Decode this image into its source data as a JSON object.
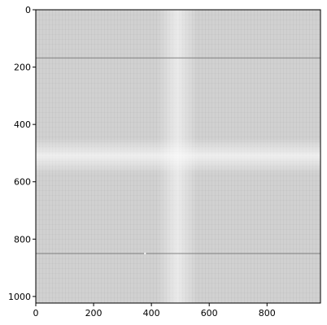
{
  "chart_data": {
    "type": "heatmap",
    "title": "",
    "xlabel": "",
    "ylabel": "",
    "xlim": [
      0,
      985
    ],
    "ylim": [
      1023,
      0
    ],
    "x_ticks": [
      0,
      200,
      400,
      600,
      800
    ],
    "y_ticks": [
      0,
      200,
      400,
      600,
      800,
      1000
    ],
    "x_tick_labels": [
      "0",
      "200",
      "400",
      "600",
      "800"
    ],
    "y_tick_labels": [
      "0",
      "200",
      "400",
      "600",
      "800",
      "1000"
    ],
    "grid": false,
    "colormap": "gray",
    "background_value": 0.82,
    "bright_column_center": 490,
    "bright_row_center": 510,
    "bright_peak_value": 0.94,
    "dark_rows": [
      {
        "y": 168,
        "value": 0.45
      },
      {
        "y": 850,
        "value": 0.45
      }
    ],
    "bright_spot": {
      "x": 378,
      "y": 850,
      "value": 1.0
    },
    "colors": {
      "background_gray": "#d1d1d1",
      "dark_line": "#7a7a7a",
      "highlight": "#eeeeee"
    }
  }
}
